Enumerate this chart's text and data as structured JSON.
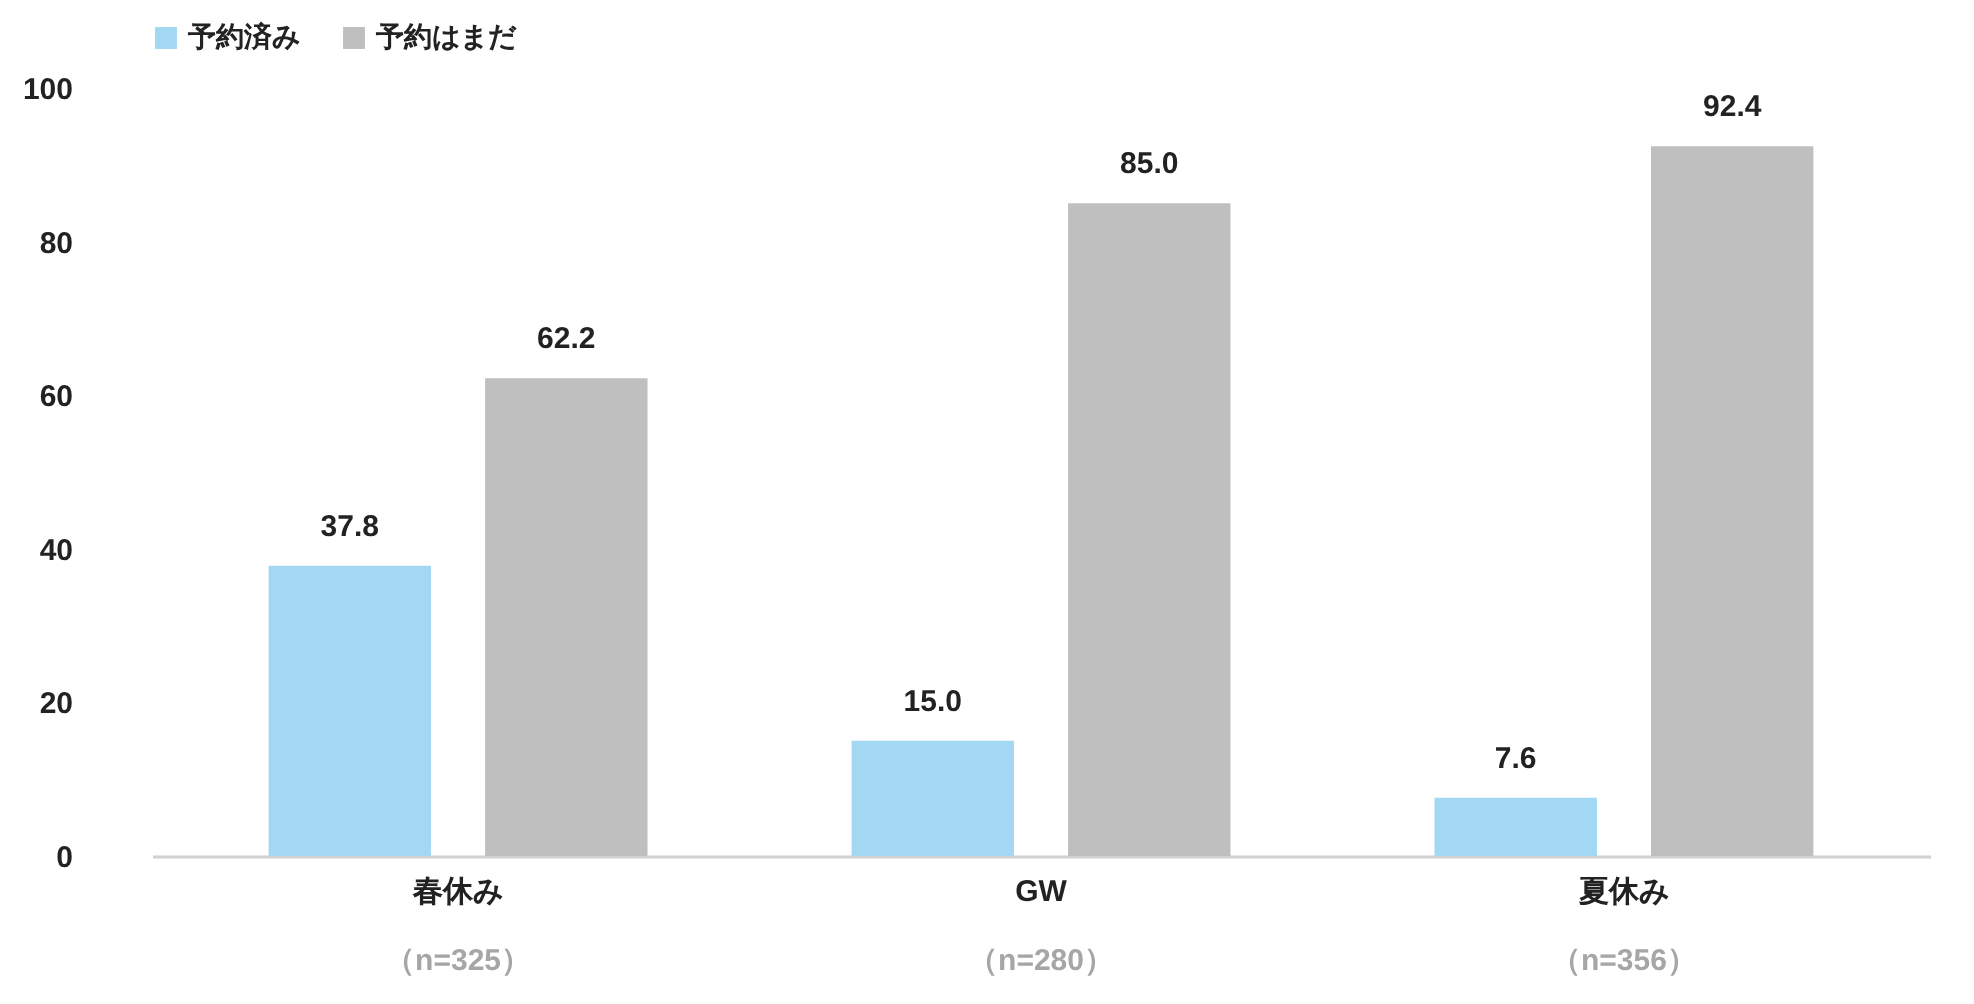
{
  "chart_data": {
    "type": "bar",
    "categories": [
      "春休み",
      "GW",
      "夏休み"
    ],
    "annotations": [
      "（n=325）",
      "（n=280）",
      "（n=356）"
    ],
    "series": [
      {
        "name": "予約済み",
        "color": "#a3d8f3",
        "values": [
          37.8,
          15.0,
          7.6
        ],
        "value_labels": [
          "37.8",
          "15.0",
          "7.6"
        ]
      },
      {
        "name": "予約はまだ",
        "color": "#bfbfbf",
        "values": [
          62.2,
          85.0,
          92.4
        ],
        "value_labels": [
          "62.2",
          "85.0",
          "92.4"
        ]
      }
    ],
    "ylim": [
      0,
      100
    ],
    "yticks": [
      0,
      20,
      40,
      60,
      80,
      100
    ],
    "grid": false,
    "legend": "top"
  }
}
